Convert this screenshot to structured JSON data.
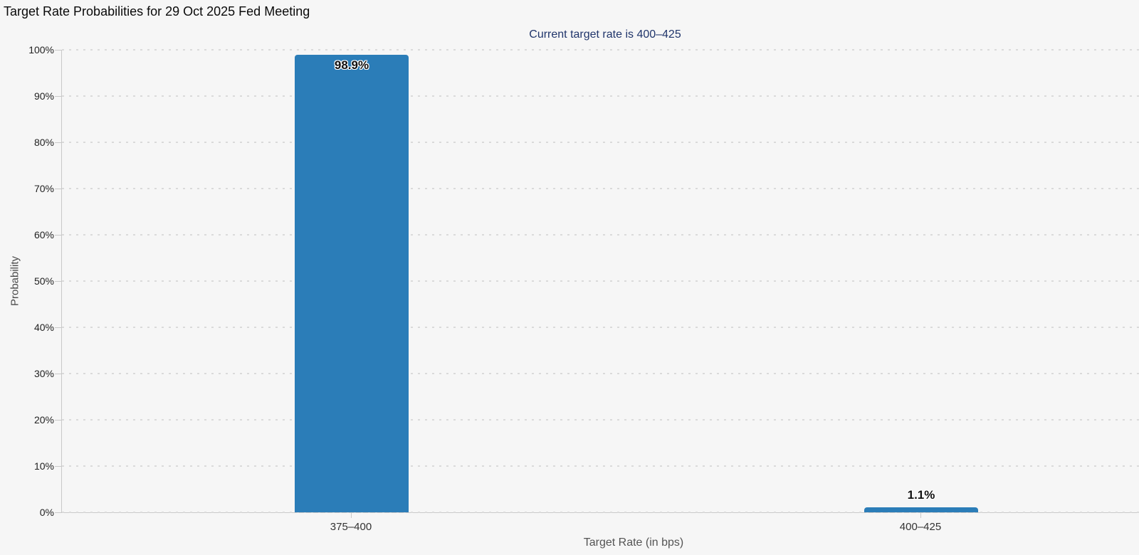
{
  "chart_data": {
    "type": "bar",
    "title": "Target Rate Probabilities for 29 Oct 2025 Fed Meeting",
    "subtitle": "Current target rate is 400–425",
    "xlabel": "Target Rate (in bps)",
    "ylabel": "Probability",
    "categories": [
      "375–400",
      "400–425"
    ],
    "values": [
      98.9,
      1.1
    ],
    "value_labels": [
      "98.9%",
      "1.1%"
    ],
    "ylim": [
      0,
      100
    ],
    "ytick_step": 10,
    "ytick_labels": [
      "0%",
      "10%",
      "20%",
      "30%",
      "40%",
      "50%",
      "60%",
      "70%",
      "80%",
      "90%",
      "100%"
    ],
    "legend": "none",
    "grid": "horizontal-dotted",
    "bar_color": "#2b7db8"
  },
  "colors": {
    "background": "#f6f6f6",
    "bar": "#2b7db8",
    "subtitle_text": "#20356b",
    "grid_dot": "#dadada",
    "axis_line": "#c9c9c9"
  }
}
